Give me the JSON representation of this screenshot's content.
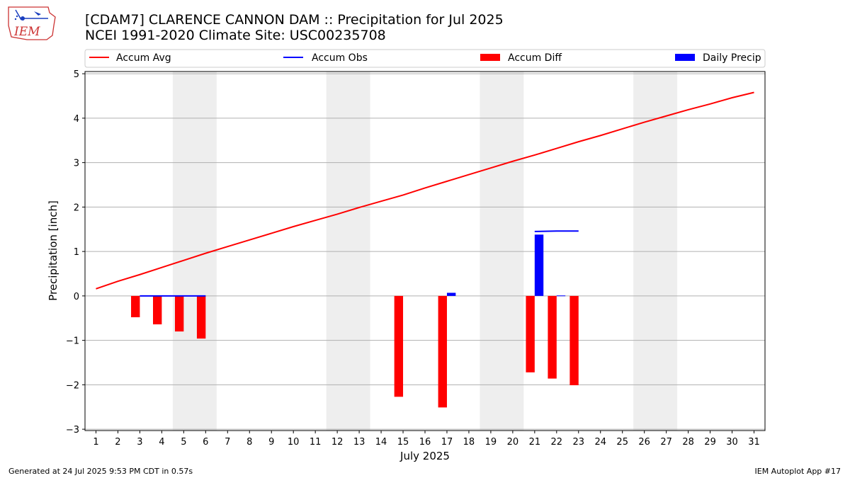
{
  "header": {
    "title_line1": "[CDAM7] CLARENCE CANNON DAM :: Precipitation for Jul 2025",
    "title_line2": "NCEI 1991-2020 Climate Site: USC00235708"
  },
  "logo": {
    "text": "IEM"
  },
  "footer": {
    "generated": "Generated at 24 Jul 2025 9:53 PM CDT in 0.57s",
    "app": "IEM Autoplot App #17"
  },
  "colors": {
    "avg": "#ff0000",
    "obs": "#0000ff",
    "diff": "#ff0000",
    "daily": "#0000ff",
    "weekend": "#eeeeee",
    "grid": "#b0b0b0"
  },
  "chart_data": {
    "type": "bar",
    "xlabel": "July 2025",
    "ylabel": "Precipitation [inch]",
    "xlim": [
      0.5,
      31.5
    ],
    "ylim": [
      -3.03,
      5.05
    ],
    "yticks": [
      -3,
      -2,
      -1,
      0,
      1,
      2,
      3,
      4,
      5
    ],
    "ytick_labels": [
      "−3",
      "−2",
      "−1",
      "0",
      "1",
      "2",
      "3",
      "4",
      "5"
    ],
    "xticks": [
      1,
      2,
      3,
      4,
      5,
      6,
      7,
      8,
      9,
      10,
      11,
      12,
      13,
      14,
      15,
      16,
      17,
      18,
      19,
      20,
      21,
      22,
      23,
      24,
      25,
      26,
      27,
      28,
      29,
      30,
      31
    ],
    "grid": "horizontal",
    "legend_position": "top",
    "weekend_spans": [
      [
        4.5,
        6.5
      ],
      [
        11.5,
        13.5
      ],
      [
        18.5,
        20.5
      ],
      [
        25.5,
        27.5
      ]
    ],
    "series": [
      {
        "name": "Accum Avg",
        "kind": "line",
        "x": [
          1,
          2,
          3,
          4,
          5,
          6,
          7,
          8,
          9,
          10,
          11,
          12,
          13,
          14,
          15,
          16,
          17,
          18,
          19,
          20,
          21,
          22,
          23,
          24,
          25,
          26,
          27,
          28,
          29,
          30,
          31
        ],
        "y": [
          0.16,
          0.33,
          0.48,
          0.64,
          0.8,
          0.96,
          1.11,
          1.26,
          1.41,
          1.56,
          1.7,
          1.84,
          1.99,
          2.13,
          2.27,
          2.43,
          2.58,
          2.73,
          2.88,
          3.03,
          3.17,
          3.32,
          3.47,
          3.61,
          3.76,
          3.91,
          4.05,
          4.19,
          4.32,
          4.46,
          4.58
        ]
      },
      {
        "name": "Accum Obs",
        "kind": "line",
        "x": [
          3,
          4,
          5,
          6
        ],
        "y": [
          0.0,
          0.0,
          0.0,
          0.0
        ],
        "x2": [
          21,
          22,
          23
        ],
        "y2": [
          1.45,
          1.46,
          1.46
        ]
      },
      {
        "name": "Accum Diff",
        "kind": "bar",
        "x": [
          3,
          4,
          5,
          6,
          15,
          17,
          21,
          22,
          23
        ],
        "y": [
          -0.48,
          -0.64,
          -0.8,
          -0.96,
          -2.27,
          -2.51,
          -1.72,
          -1.86,
          -2.01
        ]
      },
      {
        "name": "Daily Precip",
        "kind": "bar",
        "x": [
          17,
          21,
          22
        ],
        "y": [
          0.07,
          1.38,
          0.01
        ]
      }
    ]
  }
}
